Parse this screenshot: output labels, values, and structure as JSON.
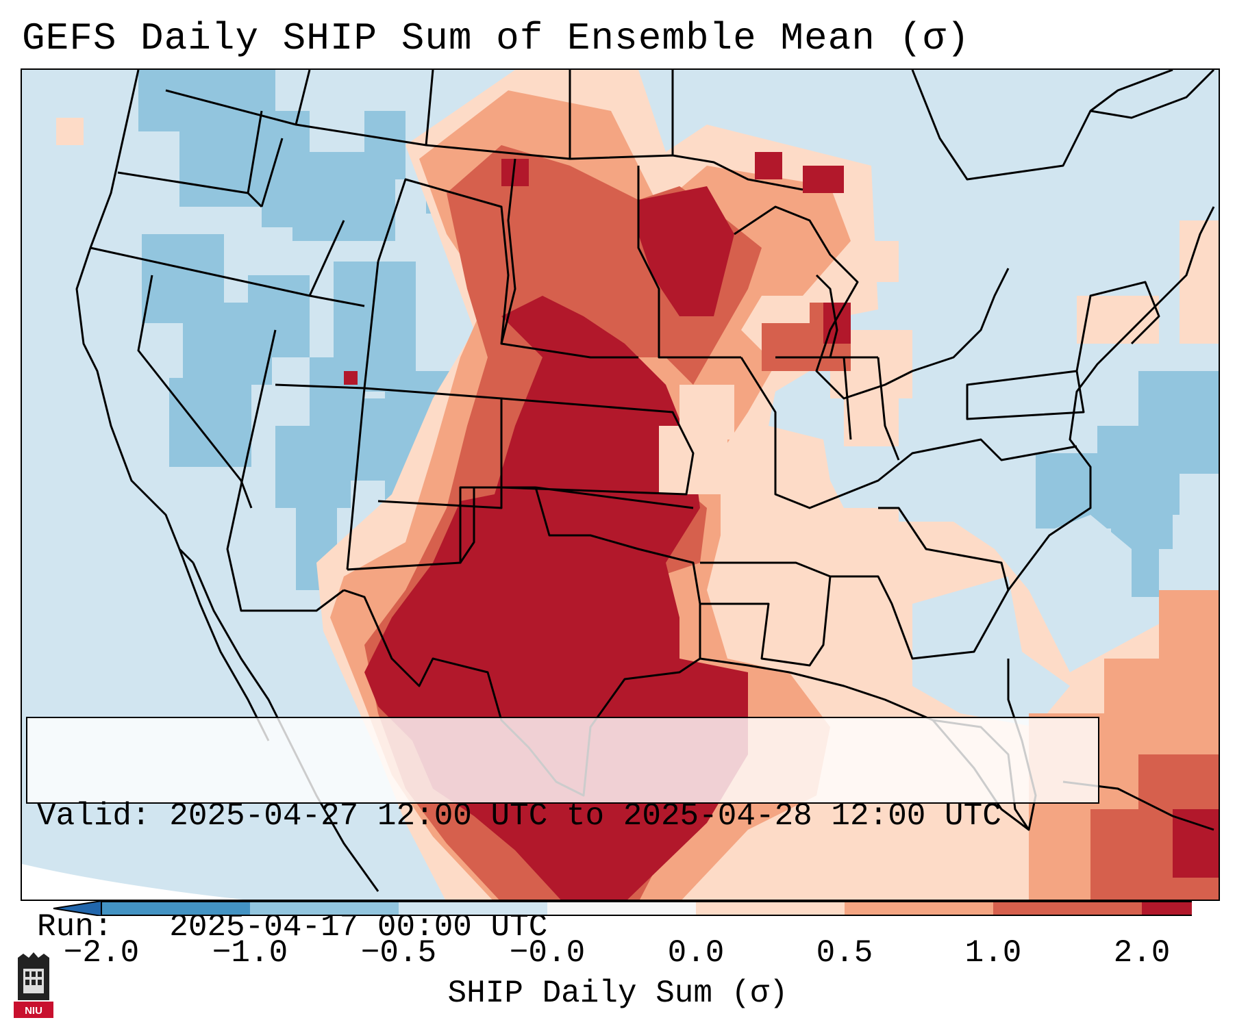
{
  "title": "GEFS Daily SHIP Sum of Ensemble Mean (σ)",
  "info": {
    "valid_line": "Valid: 2025-04-27 12:00 UTC to 2025-04-28 12:00 UTC",
    "run_line": "Run:   2025-04-17 00:00 UTC"
  },
  "colorbar": {
    "label": "SHIP Daily Sum (σ)",
    "ticks": [
      "−2.0",
      "−1.0",
      "−0.5",
      "−0.0",
      "0.0",
      "0.5",
      "1.0",
      "2.0"
    ],
    "colors": [
      "#4393c3",
      "#92c5de",
      "#d1e5f0",
      "#f7f7f7",
      "#fddbc7",
      "#f4a582",
      "#d6604d",
      "#b2182b"
    ],
    "under_color": "#2166ac",
    "over_color": "#b2182b"
  },
  "map": {
    "projection": "Lambert Conformal Conic",
    "region": "Contiguous United States",
    "palette": {
      "dark_red": "#b2182b",
      "red": "#d6604d",
      "salmon": "#f4a582",
      "light_salmon": "#fddbc7",
      "light_blue": "#d1e5f0",
      "medium_blue": "#92c5de",
      "blue": "#4393c3"
    }
  },
  "logo": {
    "text": "NIU"
  }
}
